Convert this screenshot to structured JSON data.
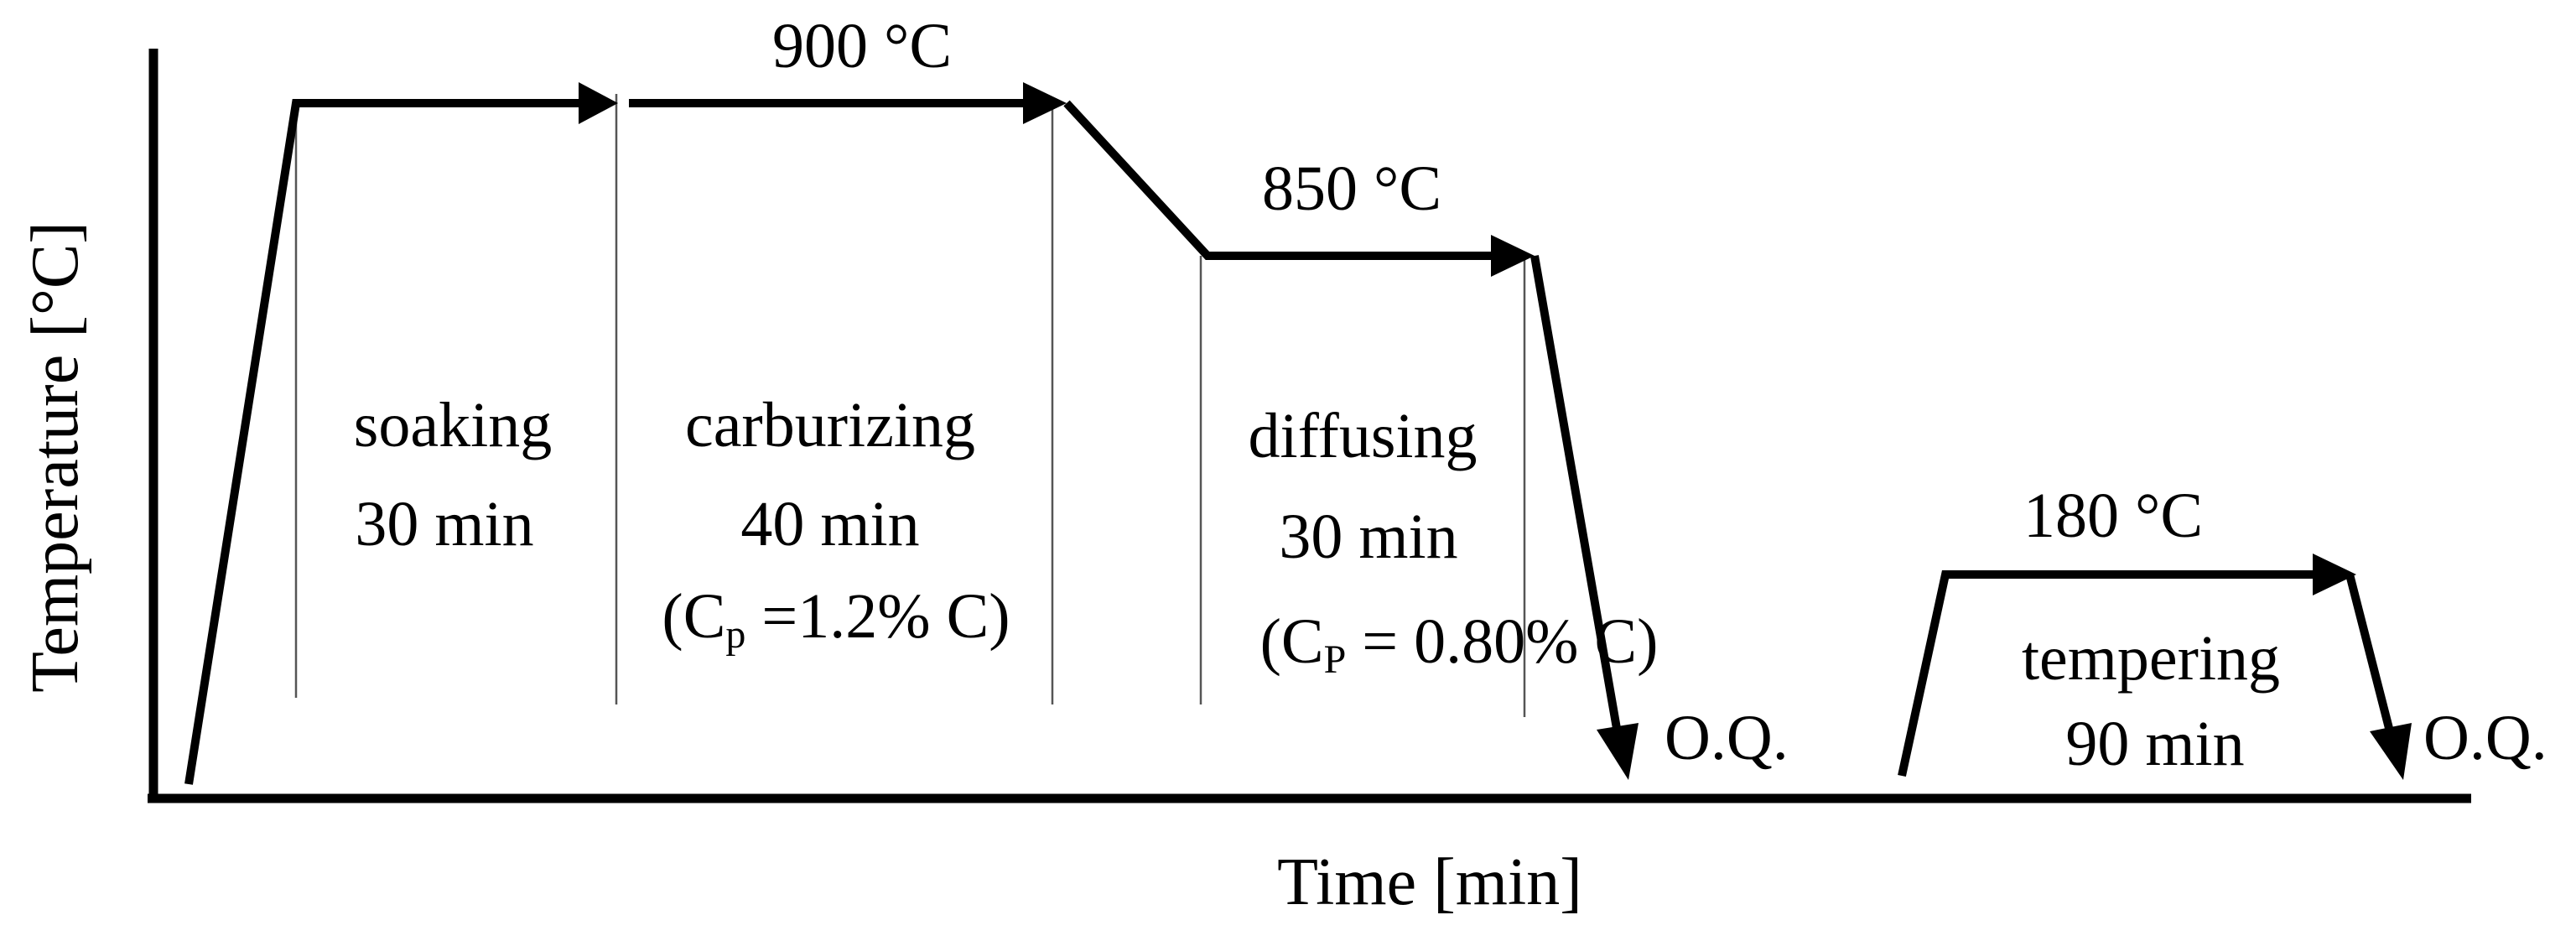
{
  "axes": {
    "y_title": "Temperature [°C]",
    "x_title": "Time [min]"
  },
  "temperatures": {
    "t900": "900 °C",
    "t850": "850 °C",
    "t180": "180 °C"
  },
  "stages": {
    "soaking": {
      "name": "soaking",
      "duration": "30 min"
    },
    "carburizing": {
      "name": "carburizing",
      "duration": "40 min",
      "cp_open": "(C",
      "cp_sub": "p",
      "cp_value": " =1.2% C)"
    },
    "diffusing": {
      "name": "diffusing",
      "duration": "30 min",
      "cp_open": "(C",
      "cp_sub": "P",
      "cp_value": " = 0.80% C)"
    },
    "tempering": {
      "name": "tempering",
      "duration": "90 min"
    }
  },
  "quench": {
    "first": "O.Q.",
    "second": "O.Q."
  }
}
